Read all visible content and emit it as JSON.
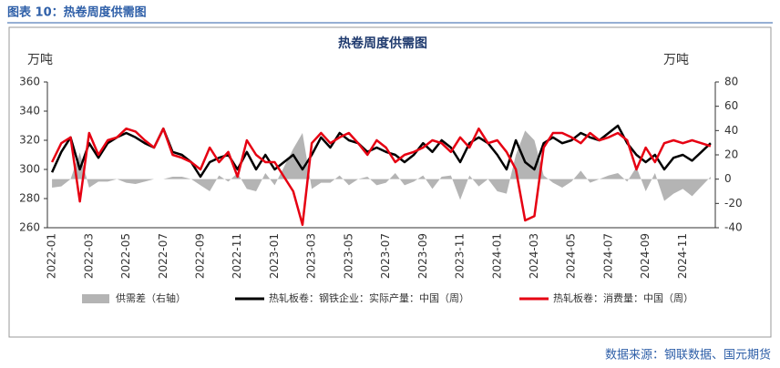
{
  "header": {
    "title": "图表 10：热卷周度供需图"
  },
  "chart_data": {
    "type": "line",
    "title": "热卷周度供需图",
    "y_unit": "万吨",
    "y2_unit": "万吨",
    "categories": [
      "2022-01",
      null,
      null,
      null,
      "2022-03",
      null,
      null,
      null,
      "2022-05",
      null,
      null,
      null,
      "2022-07",
      null,
      null,
      null,
      "2022-09",
      null,
      null,
      null,
      "2022-11",
      null,
      null,
      null,
      "2023-01",
      null,
      null,
      null,
      "2023-03",
      null,
      null,
      null,
      "2023-05",
      null,
      null,
      null,
      "2023-07",
      null,
      null,
      null,
      "2023-09",
      null,
      null,
      null,
      "2023-11",
      null,
      null,
      null,
      "2024-01",
      null,
      null,
      null,
      "2024-03",
      null,
      null,
      null,
      "2024-05",
      null,
      null,
      null,
      "2024-07",
      null,
      null,
      null,
      "2024-09",
      null,
      null,
      null,
      "2024-11",
      null,
      null,
      null
    ],
    "ylim": [
      260,
      360
    ],
    "yticks": [
      260,
      280,
      300,
      320,
      340,
      360
    ],
    "y2lim": [
      -40,
      80
    ],
    "y2ticks": [
      -40,
      -20,
      0,
      20,
      40,
      60,
      80
    ],
    "series": [
      {
        "name": "供需差（右轴）",
        "color": "#b4b4b4",
        "kind": "area",
        "axis": "y2",
        "values": [
          -7,
          -6,
          0,
          22,
          -7,
          -2,
          -2,
          0,
          -3,
          -4,
          -2,
          0,
          0,
          2,
          2,
          0,
          -5,
          -10,
          3,
          -2,
          5,
          -8,
          -10,
          5,
          -5,
          10,
          25,
          38,
          -8,
          -3,
          -3,
          3,
          -5,
          0,
          2,
          -5,
          -3,
          5,
          -5,
          -2,
          3,
          -8,
          2,
          3,
          -17,
          3,
          -6,
          0,
          -10,
          -12,
          20,
          40,
          32,
          3,
          -3,
          -7,
          -2,
          7,
          -3,
          0,
          3,
          5,
          -2,
          10,
          -10,
          5,
          -18,
          -12,
          -8,
          -14,
          -6,
          2
        ]
      },
      {
        "name": "热轧板卷：钢铁企业：实际产量：中国（周）",
        "color": "#000000",
        "kind": "line",
        "values": [
          298,
          312,
          322,
          300,
          318,
          308,
          318,
          322,
          325,
          322,
          318,
          315,
          328,
          312,
          310,
          305,
          295,
          305,
          308,
          310,
          300,
          312,
          300,
          310,
          300,
          305,
          310,
          300,
          310,
          322,
          315,
          325,
          320,
          318,
          312,
          315,
          312,
          310,
          305,
          310,
          318,
          312,
          320,
          315,
          305,
          318,
          322,
          318,
          310,
          300,
          320,
          305,
          300,
          318,
          322,
          318,
          320,
          325,
          322,
          320,
          325,
          330,
          318,
          310,
          305,
          310,
          300,
          308,
          310,
          306,
          312,
          318
        ]
      },
      {
        "name": "热轧板卷：消费量：中国（周）",
        "color": "#e60012",
        "kind": "line",
        "values": [
          305,
          318,
          322,
          278,
          325,
          310,
          320,
          322,
          328,
          326,
          320,
          315,
          328,
          310,
          308,
          305,
          300,
          315,
          305,
          312,
          295,
          320,
          310,
          305,
          305,
          295,
          285,
          262,
          318,
          325,
          318,
          322,
          325,
          318,
          310,
          320,
          315,
          305,
          310,
          312,
          315,
          320,
          318,
          312,
          322,
          315,
          328,
          318,
          320,
          312,
          300,
          265,
          268,
          315,
          325,
          325,
          322,
          318,
          325,
          320,
          322,
          325,
          320,
          300,
          315,
          305,
          318,
          320,
          318,
          320,
          318,
          316
        ]
      }
    ]
  },
  "source": "数据来源：钢联数据、国元期货"
}
